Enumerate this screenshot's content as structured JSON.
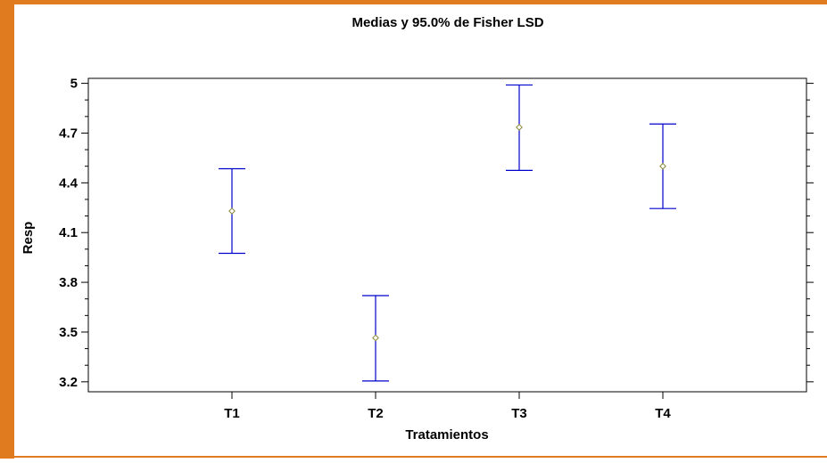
{
  "chart_data": {
    "type": "error-bar",
    "title": "Medias y 95.0% de Fisher LSD",
    "xlabel": "Tratamientos",
    "ylabel": "Resp",
    "categories": [
      "T1",
      "T2",
      "T3",
      "T4"
    ],
    "means": [
      4.23,
      3.465,
      4.735,
      4.5
    ],
    "lower": [
      3.975,
      3.205,
      4.475,
      4.245
    ],
    "upper": [
      4.485,
      3.72,
      4.99,
      4.755
    ],
    "ylim": [
      3.14,
      5.03
    ],
    "yticks": [
      3.2,
      3.5,
      3.8,
      4.1,
      4.4,
      4.7,
      5
    ],
    "ytick_labels": [
      "3.2",
      "3.5",
      "3.8",
      "4.1",
      "4.4",
      "4.7",
      "5"
    ],
    "grid": false,
    "colors": {
      "error_bar": "#0000cc",
      "mean_marker": "#8a8a3a",
      "frame_border": "#e07b1f"
    }
  }
}
